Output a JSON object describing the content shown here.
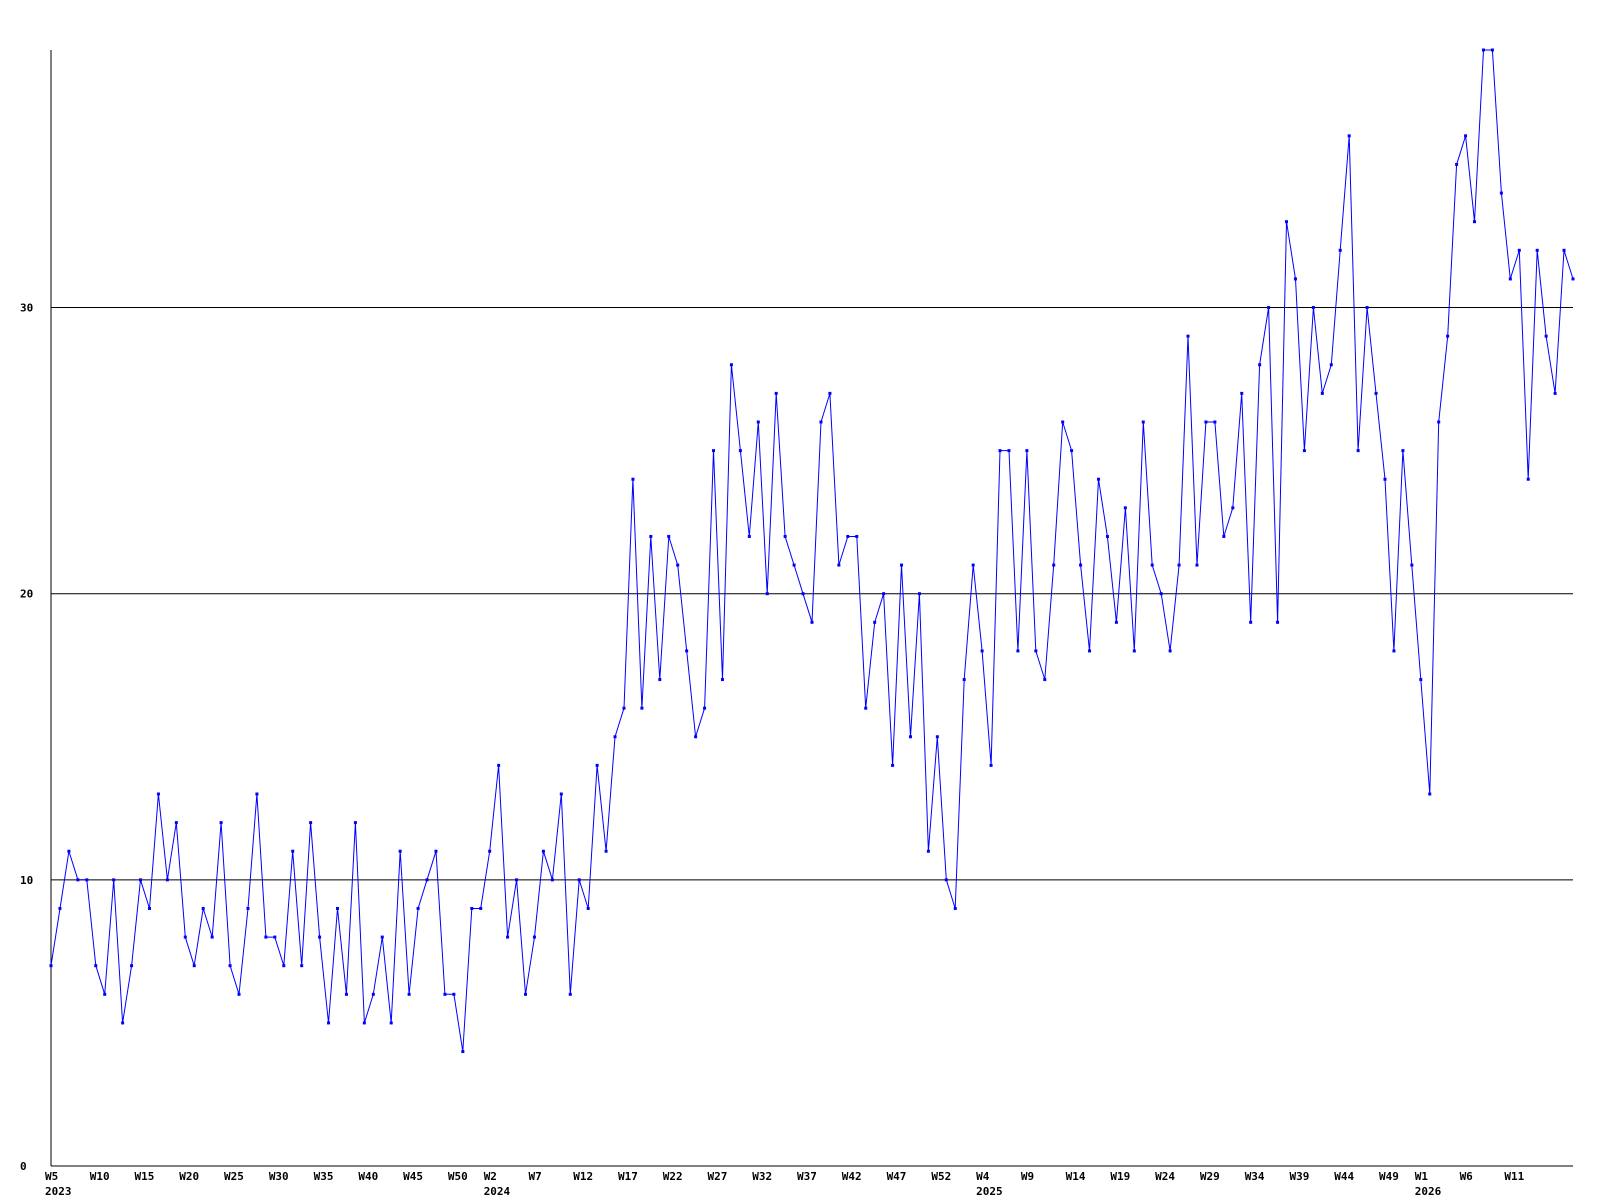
{
  "chart_data": {
    "type": "line",
    "title": "",
    "xlabel": "",
    "ylabel": "",
    "ylim": [
      0,
      39
    ],
    "y_ticks": [
      0,
      10,
      20,
      30
    ],
    "grid": "horizontal at 10, 20, 30",
    "colors": {
      "series": "#0000ff",
      "axis": "#000000",
      "background": "#ffffff"
    },
    "x_ticks": [
      {
        "i": 0,
        "label": "W5",
        "year": "2023"
      },
      {
        "i": 5,
        "label": "W10"
      },
      {
        "i": 10,
        "label": "W15"
      },
      {
        "i": 15,
        "label": "W20"
      },
      {
        "i": 20,
        "label": "W25"
      },
      {
        "i": 25,
        "label": "W30"
      },
      {
        "i": 30,
        "label": "W35"
      },
      {
        "i": 35,
        "label": "W40"
      },
      {
        "i": 40,
        "label": "W45"
      },
      {
        "i": 45,
        "label": "W50"
      },
      {
        "i": 49,
        "label": "W2",
        "year": "2024"
      },
      {
        "i": 54,
        "label": "W7"
      },
      {
        "i": 59,
        "label": "W12"
      },
      {
        "i": 64,
        "label": "W17"
      },
      {
        "i": 69,
        "label": "W22"
      },
      {
        "i": 74,
        "label": "W27"
      },
      {
        "i": 79,
        "label": "W32"
      },
      {
        "i": 84,
        "label": "W37"
      },
      {
        "i": 89,
        "label": "W42"
      },
      {
        "i": 94,
        "label": "W47"
      },
      {
        "i": 99,
        "label": "W52"
      },
      {
        "i": 104,
        "label": "W4",
        "year": "2025"
      },
      {
        "i": 109,
        "label": "W9"
      },
      {
        "i": 114,
        "label": "W14"
      },
      {
        "i": 119,
        "label": "W19"
      },
      {
        "i": 124,
        "label": "W24"
      },
      {
        "i": 129,
        "label": "W29"
      },
      {
        "i": 134,
        "label": "W34"
      },
      {
        "i": 139,
        "label": "W39"
      },
      {
        "i": 144,
        "label": "W44"
      },
      {
        "i": 149,
        "label": "W49"
      },
      {
        "i": 153,
        "label": "W1",
        "year": "2026"
      },
      {
        "i": 158,
        "label": "W6"
      },
      {
        "i": 163,
        "label": "W11"
      }
    ],
    "series": [
      {
        "values": [
          7,
          9,
          11,
          10,
          10,
          7,
          6,
          10,
          5,
          7,
          10,
          9,
          13,
          10,
          12,
          8,
          7,
          9,
          8,
          12,
          7,
          6,
          9,
          13,
          8,
          8,
          7,
          11,
          7,
          12,
          8,
          5,
          9,
          6,
          12,
          5,
          6,
          8,
          5,
          11,
          6,
          9,
          10,
          11,
          6,
          6,
          4,
          9,
          9,
          11,
          14,
          8,
          10,
          6,
          8,
          11,
          10,
          13,
          6,
          10,
          9,
          14,
          11,
          15,
          16,
          24,
          16,
          22,
          17,
          22,
          21,
          18,
          15,
          16,
          25,
          17,
          28,
          25,
          22,
          26,
          20,
          27,
          22,
          21,
          20,
          19,
          26,
          27,
          21,
          22,
          22,
          16,
          19,
          20,
          14,
          21,
          15,
          20,
          11,
          15,
          10,
          9,
          17,
          21,
          18,
          14,
          25,
          25,
          18,
          25,
          18,
          17,
          21,
          26,
          25,
          21,
          18,
          24,
          22,
          19,
          23,
          18,
          26,
          21,
          20,
          18,
          21,
          29,
          21,
          26,
          26,
          22,
          23,
          27,
          19,
          28,
          30,
          19,
          33,
          31,
          25,
          30,
          27,
          28,
          32,
          36,
          25,
          30,
          27,
          24,
          18,
          25,
          21,
          17,
          13,
          26,
          29,
          35,
          36,
          33,
          39,
          39,
          34,
          31,
          32,
          24,
          32,
          29,
          27,
          32,
          31
        ]
      }
    ]
  }
}
